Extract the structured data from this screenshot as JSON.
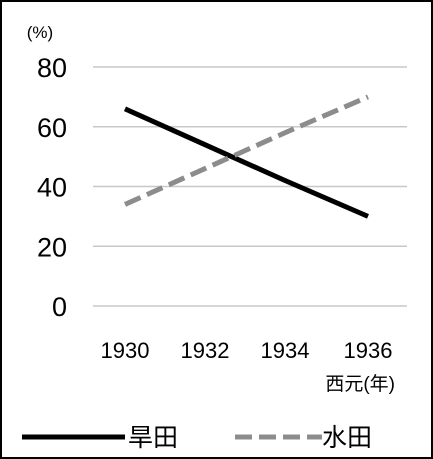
{
  "chart_data": {
    "type": "line",
    "y_unit_label": "(%)",
    "x": [
      1930,
      1932,
      1934,
      1936
    ],
    "x_tick_labels": [
      "1930",
      "1932",
      "1934",
      "1936"
    ],
    "x_unit_label": "西元(年)",
    "ylim": [
      0,
      80
    ],
    "y_ticks": [
      0,
      20,
      40,
      60,
      80
    ],
    "y_tick_labels": [
      "0",
      "20",
      "40",
      "60",
      "80"
    ],
    "grid": true,
    "legend_position": "bottom",
    "series": [
      {
        "name": "旱田",
        "values": [
          66,
          54,
          42,
          30
        ],
        "color": "#000000",
        "dash": "solid"
      },
      {
        "name": "水田",
        "values": [
          34,
          46,
          58,
          70
        ],
        "color": "#8c8c8c",
        "dash": "dashed"
      }
    ]
  }
}
